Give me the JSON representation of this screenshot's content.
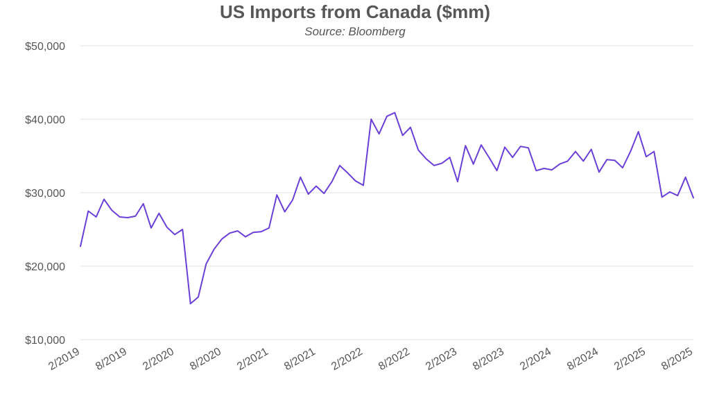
{
  "chart_data": {
    "type": "line",
    "title": "US Imports from Canada ($mm)",
    "subtitle": "Source: Bloomberg",
    "xlabel": "",
    "ylabel": "",
    "ylim": [
      10000,
      50000
    ],
    "yticks": [
      10000,
      20000,
      30000,
      40000,
      50000
    ],
    "ytick_labels": [
      "$10,000",
      "$20,000",
      "$30,000",
      "$40,000",
      "$50,000"
    ],
    "xtick_labels": [
      "2/2019",
      "8/2019",
      "2/2020",
      "8/2020",
      "2/2021",
      "8/2021",
      "2/2022",
      "8/2022",
      "2/2023",
      "8/2023",
      "2/2024",
      "8/2024",
      "2/2025",
      "8/2025"
    ],
    "grid": true,
    "line_color": "#6a3fd8",
    "x": [
      "2/2019",
      "3/2019",
      "4/2019",
      "5/2019",
      "6/2019",
      "7/2019",
      "8/2019",
      "9/2019",
      "10/2019",
      "11/2019",
      "12/2019",
      "1/2020",
      "2/2020",
      "3/2020",
      "4/2020",
      "5/2020",
      "6/2020",
      "7/2020",
      "8/2020",
      "9/2020",
      "10/2020",
      "11/2020",
      "12/2020",
      "1/2021",
      "2/2021",
      "3/2021",
      "4/2021",
      "5/2021",
      "6/2021",
      "7/2021",
      "8/2021",
      "9/2021",
      "10/2021",
      "11/2021",
      "12/2021",
      "1/2022",
      "2/2022",
      "3/2022",
      "4/2022",
      "5/2022",
      "6/2022",
      "7/2022",
      "8/2022",
      "9/2022",
      "10/2022",
      "11/2022",
      "12/2022",
      "1/2023",
      "2/2023",
      "3/2023",
      "4/2023",
      "5/2023",
      "6/2023",
      "7/2023",
      "8/2023",
      "9/2023",
      "10/2023",
      "11/2023",
      "12/2023",
      "1/2024",
      "2/2024",
      "3/2024",
      "4/2024",
      "5/2024",
      "6/2024",
      "7/2024",
      "8/2024",
      "9/2024",
      "10/2024",
      "11/2024",
      "12/2024",
      "1/2025",
      "2/2025",
      "3/2025",
      "4/2025",
      "5/2025",
      "6/2025",
      "7/2025",
      "8/2025"
    ],
    "series": [
      {
        "values": [
          22700,
          27500,
          26700,
          29100,
          27600,
          26700,
          26600,
          26800,
          28500,
          25200,
          27200,
          25300,
          24300,
          25000,
          14900,
          15800,
          20300,
          22300,
          23700,
          24500,
          24800,
          24000,
          24600,
          24700,
          25200,
          29700,
          27400,
          29000,
          32100,
          29800,
          30900,
          29900,
          31500,
          33700,
          32700,
          31600,
          31000,
          40000,
          38000,
          40400,
          40900,
          37800,
          38900,
          35800,
          34600,
          33700,
          34000,
          34800,
          31500,
          36400,
          33900,
          36500,
          34800,
          33000,
          36200,
          34800,
          36300,
          36100,
          33000,
          33300,
          33100,
          33900,
          34300,
          35600,
          34300,
          35900,
          32800,
          34500,
          34400,
          33400,
          35600,
          38300,
          34900,
          35600,
          29400,
          30100,
          29600,
          32100,
          29300
        ]
      }
    ]
  }
}
